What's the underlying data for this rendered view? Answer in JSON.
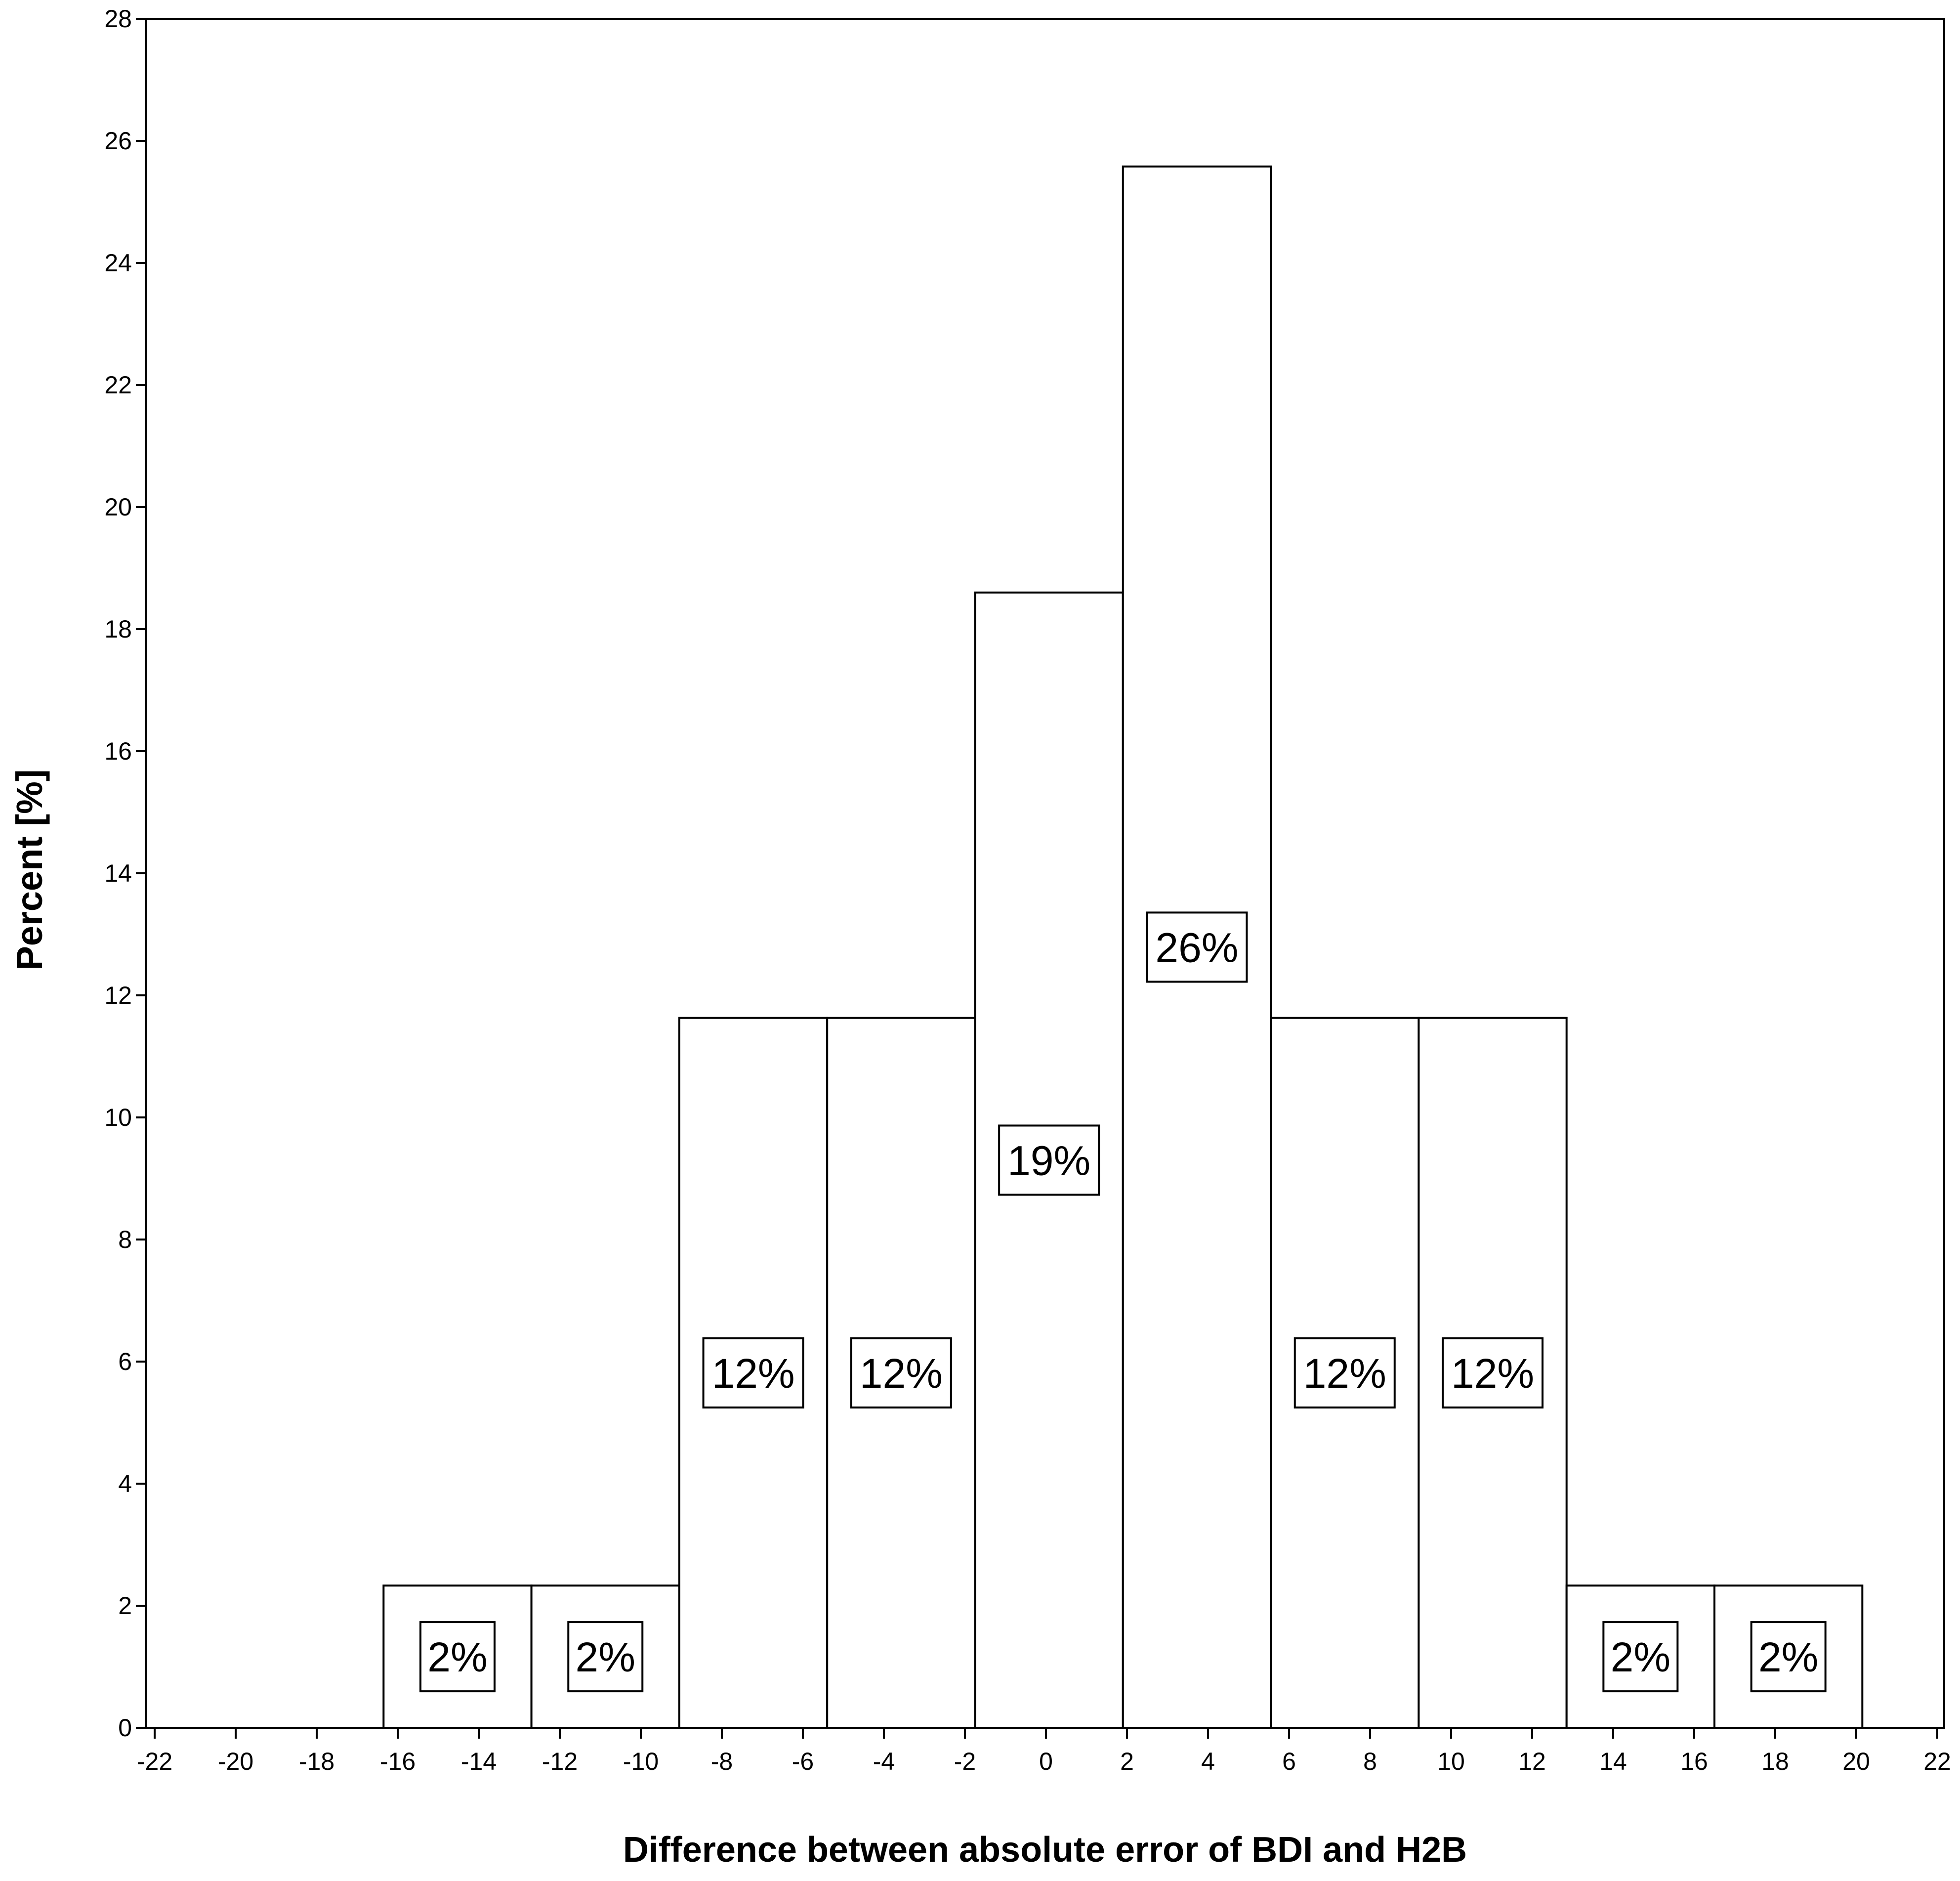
{
  "chart_data": {
    "type": "bar",
    "subtype": "histogram",
    "title": "",
    "xlabel": "Difference between absolute error of BDI and H2B",
    "ylabel": "Percent [%]",
    "xlim": [
      -22,
      22
    ],
    "ylim": [
      0,
      28
    ],
    "x_ticks": [
      "-22",
      "-20",
      "-18",
      "-16",
      "-14",
      "-12",
      "-10",
      "-8",
      "-6",
      "-4",
      "-2",
      "0",
      "2",
      "4",
      "6",
      "8",
      "10",
      "12",
      "14",
      "16",
      "18",
      "20",
      "22"
    ],
    "y_ticks": [
      "0",
      "2",
      "4",
      "6",
      "8",
      "10",
      "12",
      "14",
      "16",
      "18",
      "20",
      "22",
      "24",
      "26",
      "28"
    ],
    "grid": false,
    "legend": "none",
    "bins": [
      {
        "x_start": -16.35,
        "x_end": -12.7,
        "value": 2.33,
        "label": "2%"
      },
      {
        "x_start": -12.7,
        "x_end": -9.05,
        "value": 2.33,
        "label": "2%"
      },
      {
        "x_start": -9.05,
        "x_end": -5.4,
        "value": 11.63,
        "label": "12%"
      },
      {
        "x_start": -5.4,
        "x_end": -1.75,
        "value": 11.63,
        "label": "12%"
      },
      {
        "x_start": -1.75,
        "x_end": 1.9,
        "value": 18.6,
        "label": "19%"
      },
      {
        "x_start": 1.9,
        "x_end": 5.55,
        "value": 25.58,
        "label": "26%"
      },
      {
        "x_start": 5.55,
        "x_end": 9.2,
        "value": 11.63,
        "label": "12%"
      },
      {
        "x_start": 9.2,
        "x_end": 12.85,
        "value": 11.63,
        "label": "12%"
      },
      {
        "x_start": 12.85,
        "x_end": 16.5,
        "value": 2.33,
        "label": "2%"
      },
      {
        "x_start": 16.5,
        "x_end": 20.15,
        "value": 2.33,
        "label": "2%"
      }
    ],
    "colors": {
      "bar_fill": "#ffffff",
      "bar_stroke": "#000000",
      "background": "#ffffff"
    }
  }
}
